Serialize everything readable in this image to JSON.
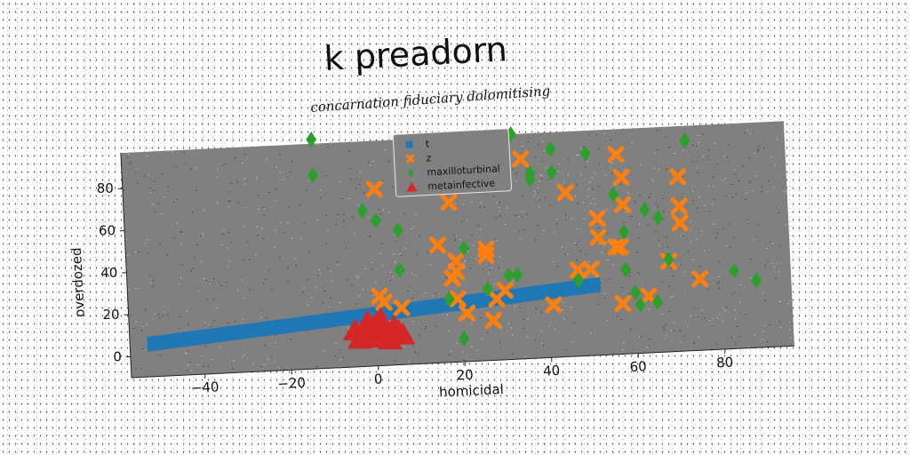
{
  "chart_data": {
    "type": "scatter",
    "title": "k preadorn",
    "subtitle": "concarnation fiduciary dolomitising",
    "xlabel": "homicidal",
    "ylabel": "overdozed",
    "xlim": [
      -57,
      96
    ],
    "ylim": [
      -10,
      97
    ],
    "xticks": [
      "−40",
      "−20",
      "0",
      "20",
      "40",
      "60",
      "80"
    ],
    "xtick_values": [
      -40,
      -20,
      0,
      20,
      40,
      60,
      80
    ],
    "yticks": [
      "0",
      "20",
      "40",
      "60",
      "80"
    ],
    "ytick_values": [
      0,
      20,
      40,
      60,
      80
    ],
    "grid": false,
    "legend_position": "top-center",
    "background": "#808080",
    "series": [
      {
        "name": "t",
        "marker": "square",
        "color": "#1f77b4",
        "band": {
          "x": [
            -53,
            52
          ],
          "y_low": [
            2,
            20
          ],
          "y_high": [
            9,
            27
          ]
        }
      },
      {
        "name": "z",
        "marker": "x",
        "color": "#ff7f0e",
        "points": [
          [
            1,
            23
          ],
          [
            2,
            20
          ],
          [
            6,
            17
          ],
          [
            1,
            74
          ],
          [
            18,
            66
          ],
          [
            15,
            46
          ],
          [
            19,
            38
          ],
          [
            19,
            33
          ],
          [
            18,
            30
          ],
          [
            26,
            43
          ],
          [
            26,
            40
          ],
          [
            19,
            20
          ],
          [
            21,
            13
          ],
          [
            27,
            9
          ],
          [
            28,
            19
          ],
          [
            30,
            23
          ],
          [
            35,
            85
          ],
          [
            41,
            15
          ],
          [
            45,
            68
          ],
          [
            47,
            31
          ],
          [
            50,
            31
          ],
          [
            52,
            55
          ],
          [
            52,
            46
          ],
          [
            57,
            85
          ],
          [
            58,
            74
          ],
          [
            58,
            61
          ],
          [
            56,
            41
          ],
          [
            57,
            41
          ],
          [
            57,
            14
          ],
          [
            63,
            17
          ],
          [
            68,
            33
          ],
          [
            71,
            73
          ],
          [
            71,
            59
          ],
          [
            71,
            51
          ],
          [
            75,
            24
          ]
        ]
      },
      {
        "name": "maxilloturbinal",
        "marker": "diamond",
        "color": "#2ca02c",
        "points": [
          [
            -13,
            99
          ],
          [
            -13,
            82
          ],
          [
            -2,
            64
          ],
          [
            1,
            59
          ],
          [
            6,
            54
          ],
          [
            6,
            35
          ],
          [
            21,
            44
          ],
          [
            26,
            24
          ],
          [
            31,
            30
          ],
          [
            33,
            30
          ],
          [
            17,
            20
          ],
          [
            20,
            1
          ],
          [
            33,
            97
          ],
          [
            37,
            75
          ],
          [
            37,
            78
          ],
          [
            42,
            89
          ],
          [
            42,
            78
          ],
          [
            50,
            86
          ],
          [
            47,
            26
          ],
          [
            56,
            66
          ],
          [
            58,
            48
          ],
          [
            58,
            30
          ],
          [
            60,
            19
          ],
          [
            61,
            13
          ],
          [
            63,
            58
          ],
          [
            66,
            54
          ],
          [
            68,
            34
          ],
          [
            65,
            14
          ],
          [
            73,
            90
          ],
          [
            83,
            27
          ],
          [
            88,
            22
          ]
        ]
      },
      {
        "name": "metainfective",
        "marker": "triangle",
        "color": "#d62728",
        "points": [
          [
            -5,
            7
          ],
          [
            -3,
            4
          ],
          [
            -1,
            8
          ],
          [
            0,
            5
          ],
          [
            1,
            3
          ],
          [
            2,
            7
          ],
          [
            3,
            5
          ],
          [
            4,
            8
          ],
          [
            5,
            6
          ],
          [
            -4,
            3
          ],
          [
            0,
            10
          ],
          [
            3,
            2
          ],
          [
            6,
            4
          ],
          [
            -2,
            11
          ],
          [
            1,
            12
          ]
        ]
      }
    ]
  }
}
